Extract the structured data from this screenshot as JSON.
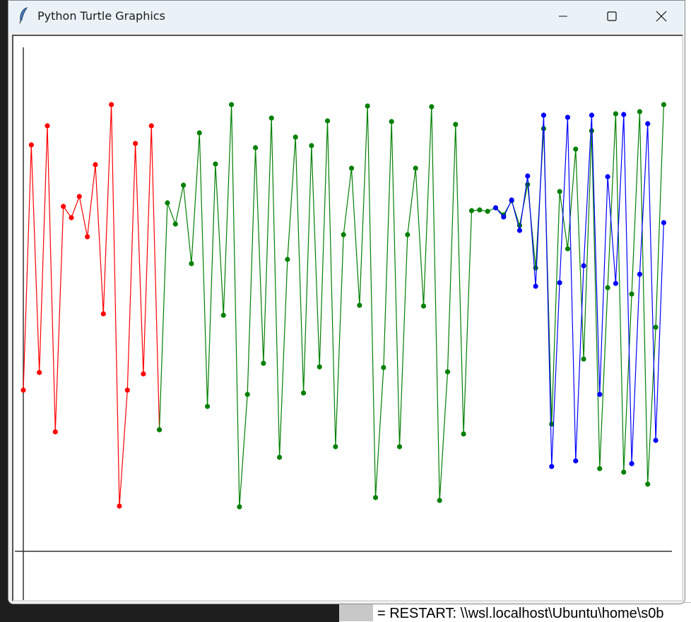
{
  "window": {
    "title": "Python Turtle Graphics",
    "icon": "feather-icon",
    "controls": [
      "minimize-icon",
      "maximize-icon",
      "close-icon"
    ]
  },
  "background": {
    "shell_text": "= RESTART: \\\\wsl.localhost\\Ubuntu\\home\\s0b"
  },
  "chart_data": {
    "type": "line",
    "title": "",
    "xlabel": "",
    "ylabel": "",
    "grid": false,
    "markers": true,
    "series": [
      {
        "color": "#ff0000",
        "x_start": 0,
        "values": [
          228,
          575,
          253,
          602,
          169,
          488,
          472,
          502,
          445,
          547,
          336,
          632,
          64,
          228,
          577,
          251,
          602,
          172
        ]
      },
      {
        "color": "#008000",
        "x_start": 17,
        "values": [
          172,
          493,
          463,
          518,
          407,
          592,
          205,
          548,
          334,
          632,
          63,
          222,
          571,
          266,
          613,
          133,
          413,
          586,
          224,
          574,
          261,
          609,
          148,
          448,
          542,
          348,
          630,
          76,
          260,
          608,
          148,
          448,
          542,
          347,
          629,
          72,
          254,
          604,
          166,
          482,
          483,
          481,
          486,
          476,
          496,
          461,
          519,
          401,
          598,
          180,
          509,
          428,
          569,
          272,
          595,
          117,
          373,
          619,
          112,
          364,
          622,
          95,
          317,
          632
        ]
      },
      {
        "color": "#0000ff",
        "x_start": 59,
        "values": [
          486,
          473,
          497,
          454,
          531,
          375,
          617,
          120,
          380,
          614,
          128,
          404,
          617,
          222,
          530,
          379,
          618,
          124,
          392,
          605,
          157,
          465
        ]
      }
    ]
  }
}
